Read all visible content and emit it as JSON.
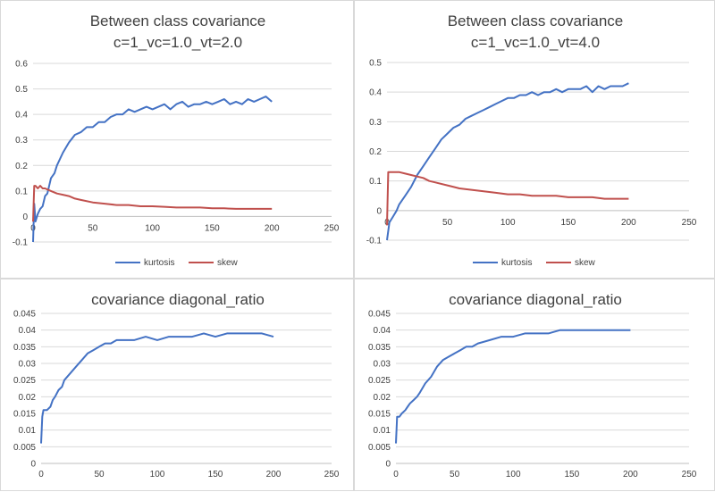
{
  "chart_data": [
    {
      "id": "c1",
      "type": "line",
      "title_lines": [
        "Between class covariance",
        "c=1_vc=1.0_vt=2.0"
      ],
      "xlim": [
        0,
        250
      ],
      "xticks": [
        0,
        50,
        100,
        150,
        200,
        250
      ],
      "xtick_labels": [
        "0",
        "50",
        "100",
        "150",
        "200",
        "250"
      ],
      "ylim": [
        -0.1,
        0.6
      ],
      "yticks": [
        -0.1,
        0,
        0.1,
        0.2,
        0.3,
        0.4,
        0.5,
        0.6
      ],
      "ytick_labels": [
        "-0.1",
        "0",
        "0.1",
        "0.2",
        "0.3",
        "0.4",
        "0.5",
        "0.6"
      ],
      "grid": "horizontal",
      "legend": "bottom",
      "series": [
        {
          "name": "kurtosis",
          "color": "#4472c4",
          "x": [
            0,
            1,
            2,
            4,
            6,
            8,
            10,
            12,
            15,
            18,
            20,
            25,
            30,
            35,
            40,
            45,
            50,
            55,
            60,
            65,
            70,
            75,
            80,
            85,
            90,
            95,
            100,
            105,
            110,
            115,
            120,
            125,
            130,
            135,
            140,
            145,
            150,
            155,
            160,
            165,
            170,
            175,
            180,
            185,
            190,
            195,
            200
          ],
          "y": [
            -0.1,
            0.05,
            -0.02,
            0.01,
            0.03,
            0.04,
            0.08,
            0.09,
            0.15,
            0.17,
            0.2,
            0.25,
            0.29,
            0.32,
            0.33,
            0.35,
            0.35,
            0.37,
            0.37,
            0.39,
            0.4,
            0.4,
            0.42,
            0.41,
            0.42,
            0.43,
            0.42,
            0.43,
            0.44,
            0.42,
            0.44,
            0.45,
            0.43,
            0.44,
            0.44,
            0.45,
            0.44,
            0.45,
            0.46,
            0.44,
            0.45,
            0.44,
            0.46,
            0.45,
            0.46,
            0.47,
            0.45
          ]
        },
        {
          "name": "skew",
          "color": "#c0504d",
          "x": [
            0,
            1,
            2,
            4,
            6,
            8,
            10,
            15,
            20,
            25,
            30,
            35,
            40,
            50,
            60,
            70,
            80,
            90,
            100,
            110,
            120,
            130,
            140,
            150,
            160,
            170,
            180,
            190,
            200
          ],
          "y": [
            -0.02,
            0.12,
            0.12,
            0.11,
            0.12,
            0.11,
            0.11,
            0.1,
            0.09,
            0.085,
            0.08,
            0.07,
            0.065,
            0.055,
            0.05,
            0.045,
            0.045,
            0.04,
            0.04,
            0.038,
            0.035,
            0.035,
            0.035,
            0.032,
            0.032,
            0.03,
            0.03,
            0.03,
            0.03
          ]
        }
      ]
    },
    {
      "id": "c2",
      "type": "line",
      "title_lines": [
        "Between class covariance",
        "c=1_vc=1.0_vt=4.0"
      ],
      "xlim": [
        0,
        250
      ],
      "xticks": [
        0,
        50,
        100,
        150,
        200,
        250
      ],
      "xtick_labels": [
        "0",
        "50",
        "100",
        "150",
        "200",
        "250"
      ],
      "ylim": [
        -0.1,
        0.5
      ],
      "yticks": [
        -0.1,
        0,
        0.1,
        0.2,
        0.3,
        0.4,
        0.5
      ],
      "ytick_labels": [
        "-0.1",
        "0",
        "0.1",
        "0.2",
        "0.3",
        "0.4",
        "0.5"
      ],
      "grid": "horizontal",
      "legend": "bottom",
      "series": [
        {
          "name": "kurtosis",
          "color": "#4472c4",
          "x": [
            0,
            2,
            5,
            8,
            10,
            15,
            20,
            25,
            30,
            35,
            40,
            45,
            50,
            55,
            60,
            65,
            70,
            75,
            80,
            85,
            90,
            95,
            100,
            105,
            110,
            115,
            120,
            125,
            130,
            135,
            140,
            145,
            150,
            155,
            160,
            165,
            170,
            175,
            180,
            185,
            190,
            195,
            200
          ],
          "y": [
            -0.1,
            -0.04,
            -0.02,
            0.0,
            0.02,
            0.05,
            0.08,
            0.12,
            0.15,
            0.18,
            0.21,
            0.24,
            0.26,
            0.28,
            0.29,
            0.31,
            0.32,
            0.33,
            0.34,
            0.35,
            0.36,
            0.37,
            0.38,
            0.38,
            0.39,
            0.39,
            0.4,
            0.39,
            0.4,
            0.4,
            0.41,
            0.4,
            0.41,
            0.41,
            0.41,
            0.42,
            0.4,
            0.42,
            0.41,
            0.42,
            0.42,
            0.42,
            0.43
          ]
        },
        {
          "name": "skew",
          "color": "#c0504d",
          "x": [
            0,
            1,
            2,
            5,
            10,
            15,
            20,
            25,
            30,
            35,
            40,
            50,
            60,
            70,
            80,
            90,
            100,
            110,
            120,
            130,
            140,
            150,
            160,
            170,
            180,
            190,
            200
          ],
          "y": [
            -0.05,
            0.13,
            0.13,
            0.13,
            0.13,
            0.125,
            0.12,
            0.115,
            0.11,
            0.1,
            0.095,
            0.085,
            0.075,
            0.07,
            0.065,
            0.06,
            0.055,
            0.055,
            0.05,
            0.05,
            0.05,
            0.045,
            0.045,
            0.045,
            0.04,
            0.04,
            0.04
          ]
        }
      ]
    },
    {
      "id": "c3",
      "type": "line",
      "title_lines": [
        "covariance diagonal_ratio"
      ],
      "xlim": [
        0,
        250
      ],
      "xticks": [
        0,
        50,
        100,
        150,
        200,
        250
      ],
      "xtick_labels": [
        "0",
        "50",
        "100",
        "150",
        "200",
        "250"
      ],
      "ylim": [
        0,
        0.045
      ],
      "yticks": [
        0,
        0.005,
        0.01,
        0.015,
        0.02,
        0.025,
        0.03,
        0.035,
        0.04,
        0.045
      ],
      "ytick_labels": [
        "0",
        "0.005",
        "0.01",
        "0.015",
        "0.02",
        "0.025",
        "0.03",
        "0.035",
        "0.04",
        "0.045"
      ],
      "grid": "horizontal",
      "legend": "none",
      "series": [
        {
          "color": "#4472c4",
          "x": [
            0,
            1,
            2,
            5,
            8,
            10,
            12,
            15,
            18,
            20,
            25,
            30,
            35,
            40,
            45,
            50,
            55,
            60,
            65,
            70,
            80,
            90,
            100,
            110,
            120,
            130,
            140,
            150,
            160,
            170,
            180,
            190,
            200
          ],
          "y": [
            0.006,
            0.014,
            0.016,
            0.016,
            0.017,
            0.019,
            0.02,
            0.022,
            0.023,
            0.025,
            0.027,
            0.029,
            0.031,
            0.033,
            0.034,
            0.035,
            0.036,
            0.036,
            0.037,
            0.037,
            0.037,
            0.038,
            0.037,
            0.038,
            0.038,
            0.038,
            0.039,
            0.038,
            0.039,
            0.039,
            0.039,
            0.039,
            0.038
          ]
        }
      ]
    },
    {
      "id": "c4",
      "type": "line",
      "title_lines": [
        "covariance diagonal_ratio"
      ],
      "xlim": [
        0,
        250
      ],
      "xticks": [
        0,
        50,
        100,
        150,
        200,
        250
      ],
      "xtick_labels": [
        "0",
        "50",
        "100",
        "150",
        "200",
        "250"
      ],
      "ylim": [
        0,
        0.045
      ],
      "yticks": [
        0,
        0.005,
        0.01,
        0.015,
        0.02,
        0.025,
        0.03,
        0.035,
        0.04,
        0.045
      ],
      "ytick_labels": [
        "0",
        "0.005",
        "0.01",
        "0.015",
        "0.02",
        "0.025",
        "0.03",
        "0.035",
        "0.04",
        "0.045"
      ],
      "grid": "horizontal",
      "legend": "none",
      "series": [
        {
          "color": "#4472c4",
          "x": [
            0,
            1,
            3,
            5,
            8,
            10,
            12,
            15,
            18,
            20,
            25,
            30,
            35,
            40,
            45,
            50,
            55,
            60,
            65,
            70,
            80,
            90,
            100,
            110,
            120,
            130,
            140,
            150,
            160,
            170,
            180,
            190,
            200
          ],
          "y": [
            0.006,
            0.014,
            0.014,
            0.015,
            0.016,
            0.017,
            0.018,
            0.019,
            0.02,
            0.021,
            0.024,
            0.026,
            0.029,
            0.031,
            0.032,
            0.033,
            0.034,
            0.035,
            0.035,
            0.036,
            0.037,
            0.038,
            0.038,
            0.039,
            0.039,
            0.039,
            0.04,
            0.04,
            0.04,
            0.04,
            0.04,
            0.04,
            0.04
          ]
        }
      ]
    }
  ]
}
